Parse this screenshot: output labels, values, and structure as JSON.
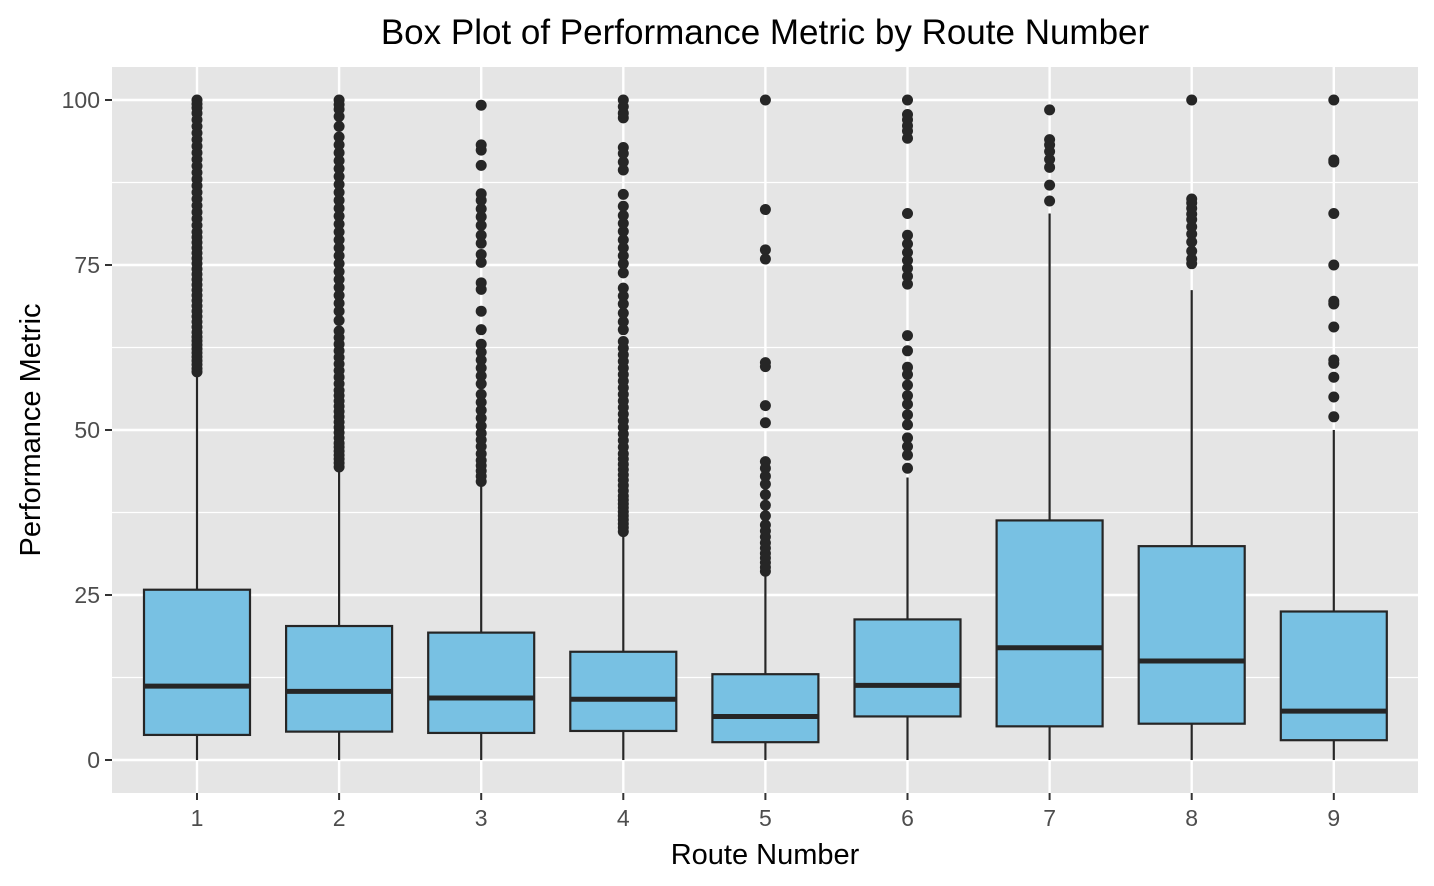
{
  "chart_data": {
    "type": "box",
    "title": "Box Plot of Performance Metric by Route Number",
    "xlabel": "Route Number",
    "ylabel": "Performance Metric",
    "categories": [
      "1",
      "2",
      "3",
      "4",
      "5",
      "6",
      "7",
      "8",
      "9"
    ],
    "y_ticks": [
      0,
      25,
      50,
      75,
      100
    ],
    "y_tick_labels": [
      "0",
      "25",
      "50",
      "75",
      "100"
    ],
    "ylim": [
      -5,
      105
    ],
    "grid": true,
    "legend": "none",
    "colors": {
      "panel_background": "#e5e5e5",
      "grid": "#ffffff",
      "box_fill": "#78c1e3",
      "box_stroke": "#262626",
      "outlier": "#262626"
    },
    "boxes": [
      {
        "route": "1",
        "whisker_low": 0,
        "q1": 3.8,
        "median": 11.2,
        "q3": 25.8,
        "whisker_high": 58.5,
        "outliers": [
          58.8,
          59.3,
          59.9,
          60.5,
          61.1,
          61.7,
          62.3,
          62.9,
          63.5,
          64.1,
          64.8,
          65.6,
          66.4,
          67.2,
          68.0,
          68.8,
          69.6,
          70.4,
          71.2,
          72.0,
          72.8,
          73.6,
          74.4,
          75.2,
          76.0,
          76.8,
          77.6,
          78.4,
          79.2,
          80.0,
          81.0,
          82.0,
          83.0,
          84.0,
          85.0,
          86.0,
          87.0,
          88.0,
          89.0,
          90.0,
          91.0,
          92.0,
          93.0,
          94.0,
          95.0,
          96.0,
          97.0,
          98.0,
          98.8,
          99.4,
          100.0
        ]
      },
      {
        "route": "2",
        "whisker_low": 0,
        "q1": 4.3,
        "median": 10.4,
        "q3": 20.3,
        "whisker_high": 44.2,
        "outliers": [
          44.4,
          45.0,
          45.6,
          46.2,
          46.8,
          47.4,
          48.0,
          48.8,
          49.6,
          50.4,
          51.2,
          52.0,
          52.8,
          53.6,
          54.4,
          55.2,
          56.0,
          57.0,
          58.0,
          59.0,
          60.0,
          61.0,
          62.0,
          63.0,
          64.0,
          65.0,
          66.6,
          68.0,
          69.2,
          70.4,
          71.6,
          72.8,
          74.0,
          75.2,
          76.4,
          77.6,
          78.8,
          80.0,
          81.2,
          82.4,
          83.6,
          84.8,
          86.0,
          87.2,
          88.4,
          89.6,
          90.8,
          92.0,
          93.2,
          94.4,
          96.0,
          97.5,
          98.6,
          99.3,
          100.0
        ]
      },
      {
        "route": "3",
        "whisker_low": 0,
        "q1": 4.1,
        "median": 9.4,
        "q3": 19.3,
        "whisker_high": 42.0,
        "outliers": [
          42.2,
          43.0,
          43.8,
          44.6,
          45.4,
          46.4,
          47.5,
          48.5,
          49.5,
          50.6,
          51.8,
          53.0,
          54.2,
          55.4,
          57.0,
          58.2,
          59.4,
          60.6,
          61.8,
          63.0,
          65.2,
          68.0,
          71.3,
          72.3,
          75.4,
          76.6,
          78.3,
          79.5,
          81.0,
          82.3,
          83.5,
          84.8,
          85.8,
          90.1,
          92.4,
          93.2,
          99.2
        ]
      },
      {
        "route": "4",
        "whisker_low": 0,
        "q1": 4.4,
        "median": 9.2,
        "q3": 16.4,
        "whisker_high": 34.4,
        "outliers": [
          34.6,
          35.2,
          35.8,
          36.4,
          37.0,
          37.6,
          38.2,
          38.8,
          39.4,
          40.0,
          40.8,
          41.6,
          42.4,
          43.2,
          44.0,
          44.8,
          45.6,
          46.4,
          47.4,
          48.4,
          49.4,
          50.4,
          51.4,
          52.4,
          53.4,
          54.4,
          55.4,
          56.4,
          57.4,
          58.4,
          59.4,
          60.4,
          61.4,
          62.4,
          63.4,
          65.2,
          66.4,
          67.7,
          69.1,
          70.3,
          71.5,
          73.8,
          75.2,
          76.4,
          77.6,
          78.8,
          80.1,
          81.3,
          82.5,
          83.9,
          85.7,
          89.4,
          90.6,
          91.9,
          92.8,
          97.3,
          98.0,
          99.0,
          100.0
        ]
      },
      {
        "route": "5",
        "whisker_low": 0,
        "q1": 2.7,
        "median": 6.6,
        "q3": 13.0,
        "whisker_high": 28.2,
        "outliers": [
          28.6,
          29.2,
          29.9,
          30.6,
          31.3,
          32.1,
          32.9,
          33.8,
          34.7,
          35.6,
          37.0,
          38.6,
          40.2,
          41.8,
          43.0,
          44.2,
          45.2,
          51.1,
          53.7,
          59.6,
          60.2,
          75.9,
          77.3,
          83.4,
          100.0
        ]
      },
      {
        "route": "6",
        "whisker_low": 0,
        "q1": 6.6,
        "median": 11.3,
        "q3": 21.3,
        "whisker_high": 42.8,
        "outliers": [
          44.2,
          46.2,
          47.5,
          48.8,
          50.8,
          52.3,
          53.9,
          55.2,
          56.8,
          58.4,
          59.5,
          62.0,
          64.3,
          72.1,
          73.3,
          74.5,
          75.7,
          76.9,
          78.2,
          79.5,
          82.8,
          94.2,
          95.3,
          96.1,
          97.0,
          97.8,
          100.0
        ]
      },
      {
        "route": "7",
        "whisker_low": 0,
        "q1": 5.1,
        "median": 17.0,
        "q3": 36.3,
        "whisker_high": 82.8,
        "outliers": [
          84.7,
          87.1,
          89.8,
          91.0,
          92.2,
          93.2,
          94.0,
          98.5
        ]
      },
      {
        "route": "8",
        "whisker_low": 0,
        "q1": 5.5,
        "median": 15.0,
        "q3": 32.4,
        "whisker_high": 71.2,
        "outliers": [
          75.2,
          75.9,
          77.1,
          78.5,
          79.7,
          80.8,
          81.9,
          82.7,
          83.6,
          84.4,
          85.0,
          100.0
        ]
      },
      {
        "route": "9",
        "whisker_low": 0,
        "q1": 3.0,
        "median": 7.4,
        "q3": 22.5,
        "whisker_high": 50.0,
        "outliers": [
          52.0,
          55.0,
          58.0,
          60.1,
          60.6,
          65.6,
          69.1,
          69.5,
          75.0,
          82.8,
          90.6,
          90.9,
          100.0
        ]
      }
    ]
  }
}
